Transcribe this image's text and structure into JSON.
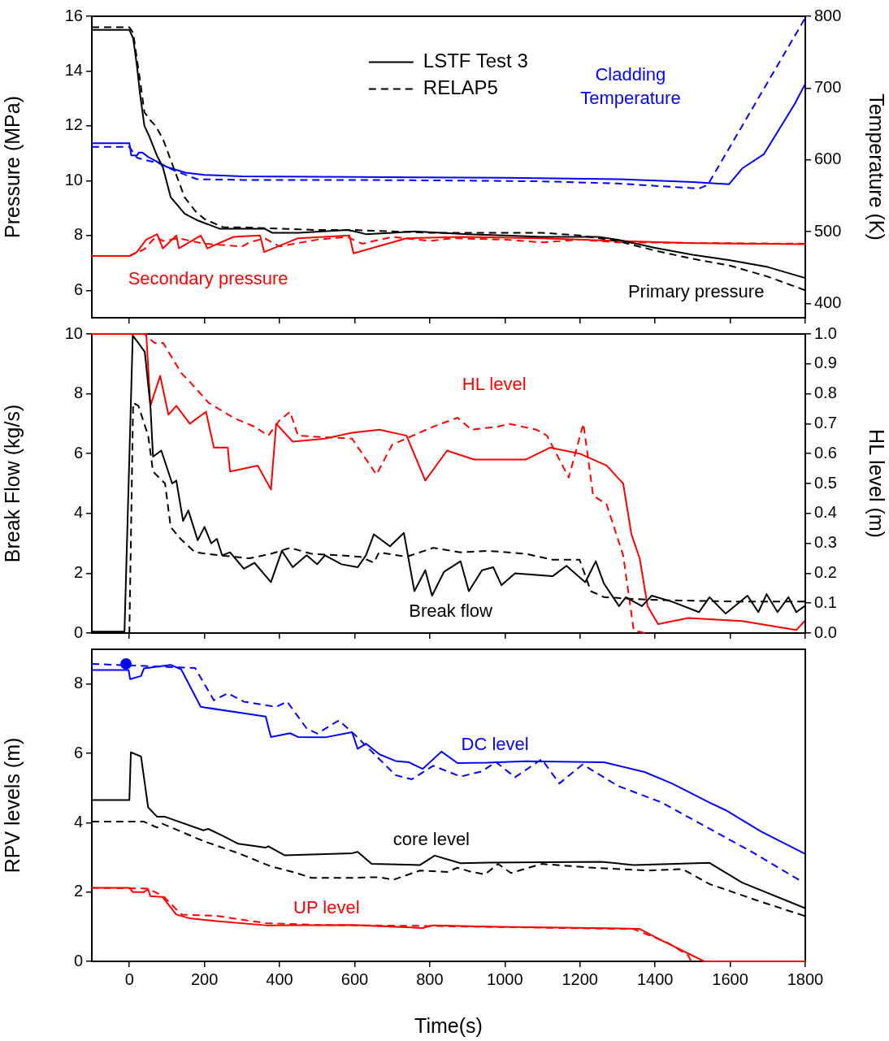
{
  "chart_data": [
    {
      "type": "line",
      "ylabel": "Pressure (MPa)",
      "y2label": "Temperature (K)",
      "xlim": [
        -100,
        1800
      ],
      "xticks": [
        0,
        200,
        400,
        600,
        800,
        1000,
        1200,
        1400,
        1600,
        1800
      ],
      "ylim": [
        5,
        16
      ],
      "yticks": [
        6,
        8,
        10,
        12,
        14,
        16
      ],
      "y2lim": [
        380,
        800
      ],
      "y2ticks": [
        400,
        500,
        600,
        700,
        800
      ],
      "tick_labels": "y",
      "legend": "top",
      "marker": "none",
      "annotations": [
        "Cladding\nTemperature",
        "Secondary pressure",
        "Primary pressure"
      ],
      "series": [
        {
          "name": "LSTF Test 3",
          "color": "#000000",
          "line_style": "solid",
          "x": [
            -100,
            0,
            10,
            20,
            28,
            40,
            52,
            74,
            89,
            110,
            147,
            182,
            240,
            300,
            360,
            380,
            450,
            580,
            600,
            630,
            700,
            760,
            900,
            1000,
            1100,
            1250,
            1300,
            1400,
            1500,
            1600,
            1700,
            1800
          ],
          "values": [
            15.5,
            15.5,
            15.2,
            14.2,
            13.2,
            12.0,
            11.65,
            10.9,
            10.5,
            9.4,
            8.8,
            8.55,
            8.25,
            8.25,
            8.25,
            8.1,
            8.1,
            8.2,
            8.15,
            8.05,
            8.1,
            8.15,
            8.05,
            8.0,
            7.95,
            7.95,
            7.85,
            7.55,
            7.3,
            7.1,
            6.85,
            6.45
          ]
        },
        {
          "name": "RELAP5",
          "color": "#000000",
          "line_style": "dashed",
          "x": [
            -100,
            0,
            10,
            30,
            40,
            56,
            70,
            90,
            117,
            147,
            175,
            200,
            250,
            300,
            400,
            500,
            600,
            700,
            800,
            900,
            1000,
            1100,
            1200,
            1300,
            1400,
            1500,
            1600,
            1700,
            1800
          ],
          "values": [
            15.6,
            15.6,
            15.4,
            13.5,
            12.5,
            12.2,
            12.0,
            11.5,
            10.5,
            9.4,
            8.9,
            8.6,
            8.3,
            8.3,
            8.25,
            8.2,
            8.2,
            8.15,
            8.1,
            8.1,
            8.1,
            8.1,
            8.0,
            7.8,
            7.45,
            7.15,
            6.9,
            6.5,
            6.0
          ]
        },
        {
          "color": "#0000ff",
          "line_style": "solid",
          "axis": "y2",
          "x": [
            -100,
            0,
            5,
            20,
            25,
            35,
            50,
            100,
            150,
            200,
            300,
            600,
            1000,
            1300,
            1500,
            1597,
            1632,
            1690,
            1772,
            1800
          ],
          "values": [
            623,
            623,
            606,
            606,
            610,
            610,
            604,
            590,
            582,
            579,
            577,
            576,
            575,
            573,
            569,
            566,
            588,
            608,
            678,
            706
          ]
        },
        {
          "color": "#0000ff",
          "line_style": "dashed",
          "axis": "y2",
          "x": [
            -100,
            0,
            20,
            40,
            80,
            120,
            180,
            300,
            600,
            900,
            1100,
            1300,
            1517,
            1540,
            1798
          ],
          "values": [
            618,
            618,
            603,
            600,
            595,
            585,
            573,
            572,
            572,
            571,
            570,
            567,
            560,
            565,
            796
          ]
        },
        {
          "color": "#ff0000",
          "line_style": "solid",
          "x": [
            -100,
            0,
            20,
            45,
            74,
            89,
            125,
            132,
            190,
            208,
            277,
            348,
            359,
            449,
            586,
            597,
            738,
            882,
            1100,
            1300,
            1500,
            1800
          ],
          "values": [
            7.25,
            7.25,
            7.4,
            7.85,
            8.05,
            7.53,
            8.0,
            7.53,
            8.0,
            7.53,
            7.95,
            8.0,
            7.4,
            7.9,
            8.0,
            7.35,
            7.9,
            7.95,
            7.9,
            7.8,
            7.72,
            7.68
          ]
        },
        {
          "color": "#ff0000",
          "line_style": "dashed",
          "x": [
            -100,
            0,
            40,
            70,
            90,
            130,
            200,
            300,
            320,
            360,
            400,
            500,
            580,
            620,
            700,
            800,
            860,
            1000,
            1100,
            1200,
            1300,
            1800
          ],
          "values": [
            7.25,
            7.25,
            7.5,
            7.95,
            7.8,
            7.9,
            7.7,
            7.6,
            7.75,
            7.9,
            7.6,
            7.85,
            7.95,
            7.7,
            7.95,
            7.8,
            7.9,
            7.85,
            7.75,
            7.85,
            7.75,
            7.7
          ]
        }
      ]
    },
    {
      "type": "line",
      "ylabel": "Break Flow (kg/s)",
      "y2label": "HL level (m)",
      "xlim": [
        -100,
        1800
      ],
      "xticks": [
        0,
        200,
        400,
        600,
        800,
        1000,
        1200,
        1400,
        1600,
        1800
      ],
      "ylim": [
        0,
        10
      ],
      "yticks": [
        0,
        2,
        4,
        6,
        8,
        10
      ],
      "y2lim": [
        0,
        1
      ],
      "y2ticks": [
        {
          "value": 0,
          "label": "0.0"
        },
        0.1,
        0.2,
        0.3,
        0.4,
        0.5,
        0.6,
        0.7,
        0.8,
        0.9,
        {
          "value": 1,
          "label": "1.0"
        }
      ],
      "tick_labels": "y",
      "marker": "none",
      "annotations": [
        "HL level",
        "Break flow"
      ],
      "series": [
        {
          "color": "#000000",
          "line_style": "solid",
          "x": [
            -100,
            -13,
            9,
            24,
            41,
            56,
            63,
            85,
            114,
            125,
            143,
            157,
            182,
            200,
            218,
            233,
            247,
            268,
            305,
            333,
            377,
            406,
            435,
            472,
            500,
            521,
            565,
            608,
            630,
            651,
            694,
            731,
            759,
            788,
            806,
            838,
            882,
            904,
            939,
            969,
            991,
            1027,
            1127,
            1164,
            1214,
            1242,
            1264,
            1304,
            1322,
            1365,
            1391,
            1445,
            1517,
            1545,
            1588,
            1646,
            1675,
            1697,
            1726,
            1755,
            1776,
            1798
          ],
          "values": [
            0.05,
            0.05,
            9.95,
            9.7,
            9.4,
            7.6,
            5.9,
            6.1,
            5.0,
            5.1,
            3.75,
            4.1,
            3.1,
            3.55,
            3.0,
            3.15,
            2.6,
            2.7,
            2.15,
            2.35,
            1.7,
            2.75,
            2.2,
            2.6,
            2.3,
            2.6,
            2.3,
            2.2,
            2.6,
            3.3,
            2.9,
            3.35,
            1.4,
            2.1,
            1.25,
            2.05,
            2.4,
            1.4,
            2.1,
            2.2,
            1.6,
            2.0,
            1.9,
            2.25,
            1.7,
            2.4,
            1.65,
            0.9,
            1.2,
            0.9,
            1.25,
            1.05,
            0.7,
            1.2,
            0.65,
            1.25,
            0.7,
            1.3,
            0.7,
            1.2,
            0.7,
            0.9
          ]
        },
        {
          "color": "#000000",
          "line_style": "dashed",
          "x": [
            -100,
            0,
            10,
            24,
            50,
            63,
            95,
            110,
            136,
            175,
            240,
            320,
            377,
            428,
            485,
            558,
            615,
            651,
            665,
            738,
            809,
            882,
            954,
            1055,
            1127,
            1199,
            1229,
            1264,
            1329,
            1415,
            1632,
            1798
          ],
          "values": [
            0,
            0,
            7.7,
            7.6,
            6.6,
            5.4,
            5.0,
            3.55,
            3.15,
            2.7,
            2.6,
            2.5,
            2.65,
            2.85,
            2.65,
            2.6,
            2.55,
            2.35,
            2.7,
            2.55,
            2.85,
            2.7,
            2.75,
            2.65,
            2.45,
            2.45,
            1.4,
            1.2,
            1.15,
            1.1,
            1.05,
            1.05
          ]
        },
        {
          "color": "#ff0000",
          "line_style": "solid",
          "axis": "y2",
          "x": [
            -100,
            45,
            56,
            82,
            104,
            125,
            161,
            204,
            225,
            262,
            268,
            342,
            377,
            391,
            435,
            521,
            593,
            666,
            738,
            788,
            846,
            918,
            1055,
            1120,
            1199,
            1271,
            1315,
            1337,
            1359,
            1380,
            1408,
            1488,
            1632,
            1776,
            1798
          ],
          "values": [
            1.0,
            1.0,
            0.76,
            0.86,
            0.73,
            0.76,
            0.7,
            0.74,
            0.62,
            0.62,
            0.54,
            0.56,
            0.48,
            0.7,
            0.64,
            0.65,
            0.67,
            0.68,
            0.66,
            0.51,
            0.61,
            0.58,
            0.58,
            0.62,
            0.6,
            0.56,
            0.5,
            0.33,
            0.25,
            0.09,
            0.03,
            0.05,
            0.04,
            0.01,
            0.04
          ]
        },
        {
          "color": "#ff0000",
          "line_style": "dashed",
          "axis": "y2",
          "x": [
            -100,
            40,
            67,
            90,
            138,
            161,
            211,
            277,
            333,
            370,
            399,
            428,
            449,
            593,
            658,
            700,
            809,
            874,
            911,
            982,
            1010,
            1084,
            1112,
            1170,
            1209,
            1235,
            1271,
            1315,
            1343,
            1372
          ],
          "values": [
            1.0,
            1.0,
            0.97,
            0.97,
            0.87,
            0.84,
            0.77,
            0.72,
            0.69,
            0.66,
            0.71,
            0.74,
            0.66,
            0.65,
            0.53,
            0.63,
            0.69,
            0.72,
            0.68,
            0.69,
            0.7,
            0.68,
            0.66,
            0.52,
            0.7,
            0.46,
            0.43,
            0.26,
            0.01,
            0.0
          ]
        }
      ]
    },
    {
      "type": "line",
      "ylabel": "RPV levels (m)",
      "xlabel": "Time(s)",
      "xlim": [
        -100,
        1800
      ],
      "xticks": [
        0,
        200,
        400,
        600,
        800,
        1000,
        1200,
        1400,
        1600,
        1800
      ],
      "ylim": [
        0,
        9
      ],
      "yticks": [
        0,
        2,
        4,
        6,
        8
      ],
      "marker": "none",
      "annotations": [
        "DC level",
        "core level",
        "UP level"
      ],
      "series": [
        {
          "color": "#0000ff",
          "line_style": "solid",
          "x": [
            -100,
            -2,
            2,
            31,
            39,
            110,
            138,
            190,
            363,
            377,
            428,
            449,
            521,
            593,
            608,
            630,
            666,
            709,
            745,
            781,
            831,
            874,
            954,
            1055,
            1264,
            1372,
            1445,
            1545,
            1588,
            1683,
            1798
          ],
          "values": [
            8.4,
            8.4,
            8.14,
            8.23,
            8.45,
            8.55,
            8.42,
            7.34,
            7.06,
            6.47,
            6.58,
            6.47,
            6.46,
            6.61,
            6.13,
            6.28,
            5.97,
            5.78,
            5.74,
            5.55,
            6.05,
            5.72,
            5.73,
            5.77,
            5.74,
            5.46,
            5.13,
            4.58,
            4.36,
            3.74,
            3.11
          ]
        },
        {
          "color": "#0000ff",
          "line_style": "dashed",
          "x": [
            -100,
            175,
            225,
            262,
            305,
            391,
            420,
            472,
            500,
            558,
            601,
            666,
            709,
            752,
            809,
            882,
            939,
            976,
            1027,
            1098,
            1145,
            1207,
            1301,
            1416,
            1539,
            1662,
            1783
          ],
          "values": [
            8.58,
            8.46,
            7.53,
            7.73,
            7.49,
            7.34,
            7.49,
            6.72,
            6.57,
            6.95,
            6.53,
            5.83,
            5.37,
            5.25,
            5.64,
            5.33,
            5.48,
            5.75,
            5.31,
            5.83,
            5.13,
            5.68,
            5.06,
            4.59,
            3.86,
            3.13,
            2.35
          ]
        },
        {
          "color": "#000000",
          "line_style": "solid",
          "x": [
            -100,
            0,
            4,
            31,
            50,
            74,
            95,
            197,
            210,
            247,
            290,
            363,
            370,
            413,
            593,
            608,
            645,
            774,
            813,
            882,
            954,
            1257,
            1343,
            1545,
            1632,
            1798
          ],
          "values": [
            4.65,
            4.65,
            6.03,
            5.91,
            4.44,
            4.17,
            4.17,
            3.78,
            3.82,
            3.63,
            3.39,
            3.28,
            3.32,
            3.06,
            3.12,
            3.16,
            2.81,
            2.78,
            3.05,
            2.83,
            2.85,
            2.87,
            2.78,
            2.84,
            2.27,
            1.54
          ]
        },
        {
          "color": "#000000",
          "line_style": "dashed",
          "x": [
            -100,
            39,
            74,
            88,
            197,
            290,
            377,
            435,
            485,
            593,
            666,
            702,
            774,
            846,
            874,
            911,
            947,
            982,
            1016,
            1098,
            1235,
            1380,
            1473,
            1545,
            1668,
            1798
          ],
          "values": [
            4.03,
            4.03,
            3.86,
            3.97,
            3.47,
            3.12,
            2.74,
            2.58,
            2.41,
            2.41,
            2.43,
            2.35,
            2.62,
            2.58,
            2.7,
            2.58,
            2.51,
            2.81,
            2.55,
            2.81,
            2.7,
            2.62,
            2.66,
            2.23,
            1.77,
            1.31
          ]
        },
        {
          "color": "#ff0000",
          "line_style": "solid",
          "x": [
            -100,
            0,
            9,
            39,
            50,
            56,
            88,
            125,
            161,
            233,
            363,
            593,
            781,
            809,
            954,
            1358,
            1416,
            1531,
            1800
          ],
          "values": [
            2.12,
            2.12,
            2.0,
            2.0,
            2.08,
            1.88,
            1.86,
            1.35,
            1.24,
            1.16,
            1.04,
            1.05,
            0.96,
            1.04,
            1.0,
            0.94,
            0.61,
            0.0,
            0.0
          ]
        },
        {
          "color": "#ff0000",
          "line_style": "dashed",
          "x": [
            -100,
            50,
            90,
            125,
            140,
            233,
            363,
            500,
            800,
            1343,
            1437,
            1488,
            1495
          ],
          "values": [
            2.12,
            2.1,
            1.88,
            1.5,
            1.35,
            1.31,
            1.1,
            1.05,
            1.02,
            0.93,
            0.52,
            0.17,
            0.02
          ]
        },
        {
          "type": "scatter",
          "color": "#0000ff",
          "marker": "circle",
          "x": [
            -9
          ],
          "values": [
            8.58
          ]
        }
      ]
    }
  ]
}
